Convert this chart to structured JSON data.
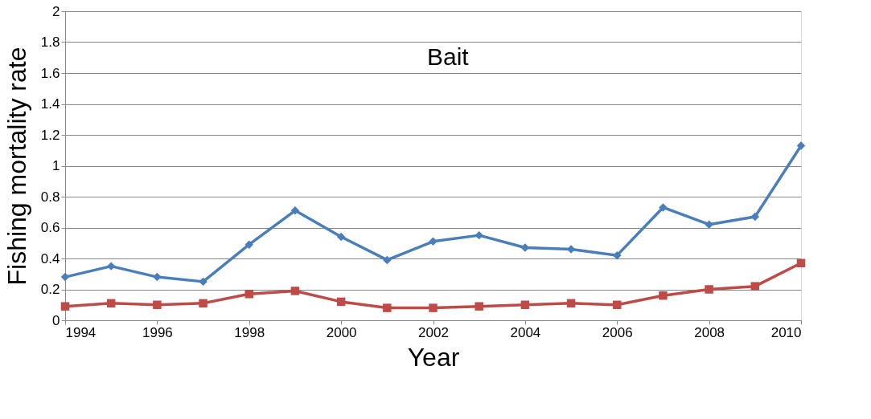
{
  "chart_data": {
    "type": "line",
    "xlabel": "Year",
    "ylabel": "Fishing mortality rate",
    "annotations": [
      "Bait"
    ],
    "x": [
      1994,
      1995,
      1996,
      1997,
      1998,
      1999,
      2000,
      2001,
      2002,
      2003,
      2004,
      2005,
      2006,
      2007,
      2008,
      2009,
      2010
    ],
    "xlim": [
      1994,
      2010
    ],
    "xticks": [
      1994,
      1996,
      1998,
      2000,
      2002,
      2004,
      2006,
      2008,
      2010
    ],
    "ylim": [
      0,
      2
    ],
    "yticks": [
      0,
      0.2,
      0.4,
      0.6,
      0.8,
      1,
      1.2,
      1.4,
      1.6,
      1.8,
      2
    ],
    "grid": "y",
    "series": [
      {
        "color": "#4a7ebb",
        "marker": "diamond",
        "values": [
          0.28,
          0.35,
          0.28,
          0.25,
          0.49,
          0.71,
          0.54,
          0.39,
          0.51,
          0.55,
          0.47,
          0.46,
          0.42,
          0.73,
          0.62,
          0.67,
          1.13
        ]
      },
      {
        "color": "#be4b48",
        "marker": "square",
        "values": [
          0.09,
          0.11,
          0.1,
          0.11,
          0.17,
          0.19,
          0.12,
          0.08,
          0.08,
          0.09,
          0.1,
          0.11,
          0.1,
          0.16,
          0.2,
          0.22,
          0.37
        ]
      }
    ]
  }
}
